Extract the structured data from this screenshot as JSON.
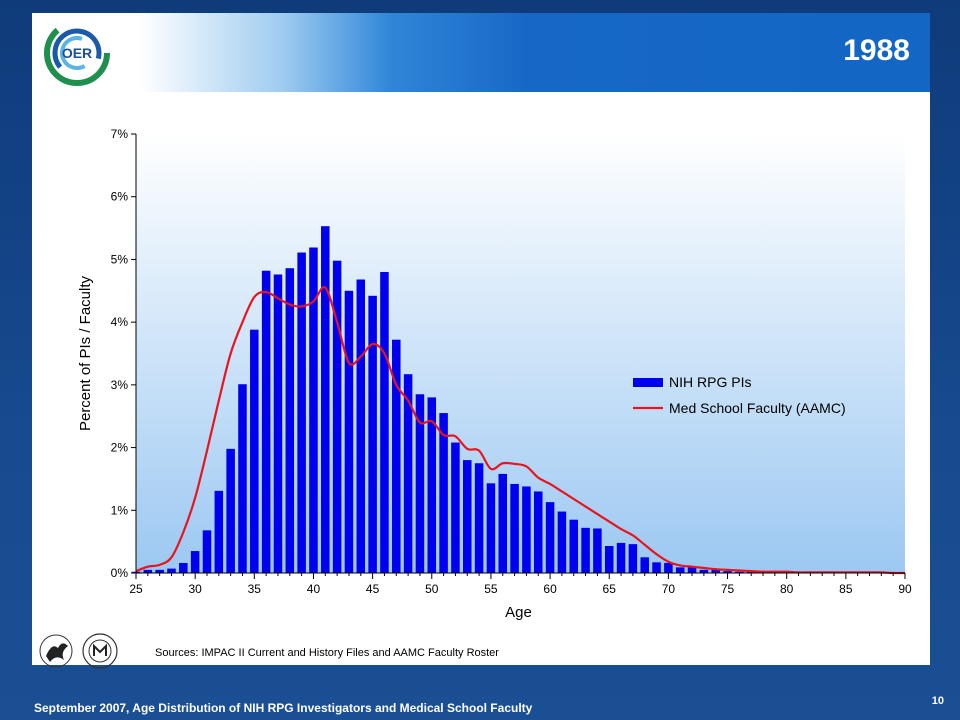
{
  "slide": {
    "title": "1988",
    "logo_text": "OER",
    "sources": "Sources:  IMPAC II Current  and History Files and AAMC Faculty Roster",
    "footer": "September 2007, Age Distribution of NIH RPG Investigators and Medical School Faculty",
    "page_number": "10",
    "logos": [
      "hhs-eagle-icon",
      "nih-seal-icon"
    ]
  },
  "colors": {
    "bar": "#0000ee",
    "line": "#e8141e",
    "header": "#1366c4",
    "plot_bg_top": "#ffffff",
    "plot_bg_bottom": "#9cc8f2"
  },
  "chart_data": {
    "type": "bar",
    "title": "",
    "xlabel": "Age",
    "ylabel": "Percent of PIs / Faculty",
    "xlim": [
      25,
      90
    ],
    "ylim": [
      0,
      7
    ],
    "x_ticks": [
      25,
      30,
      35,
      40,
      45,
      50,
      55,
      60,
      65,
      70,
      75,
      80,
      85,
      90
    ],
    "x_tick_labels": [
      "25",
      "30",
      "35",
      "40",
      "45",
      "50",
      "55",
      "60",
      "65",
      "70",
      "75",
      "80",
      "85",
      "90"
    ],
    "y_ticks": [
      0,
      1,
      2,
      3,
      4,
      5,
      6,
      7
    ],
    "y_tick_labels": [
      "0%",
      "1%",
      "2%",
      "3%",
      "4%",
      "5%",
      "6%",
      "7%"
    ],
    "legend": {
      "placement": "right",
      "entries": [
        "NIH RPG PIs",
        "Med School Faculty (AAMC)"
      ]
    },
    "series": [
      {
        "name": "NIH RPG PIs",
        "kind": "bar",
        "x": [
          25,
          26,
          27,
          28,
          29,
          30,
          31,
          32,
          33,
          34,
          35,
          36,
          37,
          38,
          39,
          40,
          41,
          42,
          43,
          44,
          45,
          46,
          47,
          48,
          49,
          50,
          51,
          52,
          53,
          54,
          55,
          56,
          57,
          58,
          59,
          60,
          61,
          62,
          63,
          64,
          65,
          66,
          67,
          68,
          69,
          70,
          71,
          72,
          73,
          74,
          75,
          76,
          77,
          78,
          79,
          80,
          81,
          82,
          83,
          84,
          85,
          86,
          87,
          88,
          89,
          90
        ],
        "values": [
          0.02,
          0.05,
          0.05,
          0.07,
          0.16,
          0.35,
          0.68,
          1.31,
          1.98,
          3.01,
          3.88,
          4.82,
          4.76,
          4.86,
          5.11,
          5.19,
          5.53,
          4.98,
          4.5,
          4.68,
          4.42,
          4.8,
          3.72,
          3.17,
          2.85,
          2.8,
          2.55,
          2.08,
          1.8,
          1.75,
          1.43,
          1.58,
          1.42,
          1.38,
          1.3,
          1.13,
          0.98,
          0.85,
          0.72,
          0.71,
          0.43,
          0.48,
          0.46,
          0.25,
          0.17,
          0.16,
          0.09,
          0.09,
          0.05,
          0.05,
          0.03,
          0.02,
          0.02,
          0.02,
          0.01,
          0.01,
          0.01,
          0.01,
          0.0,
          0.0,
          0.0,
          0.0,
          0.0,
          0.0,
          0.0,
          0.0
        ]
      },
      {
        "name": "Med School Faculty (AAMC)",
        "kind": "line",
        "x": [
          25,
          26,
          27,
          28,
          29,
          30,
          31,
          32,
          33,
          34,
          35,
          36,
          37,
          38,
          39,
          40,
          41,
          42,
          43,
          44,
          45,
          46,
          47,
          48,
          49,
          50,
          51,
          52,
          53,
          54,
          55,
          56,
          57,
          58,
          59,
          60,
          61,
          62,
          63,
          64,
          65,
          66,
          67,
          68,
          69,
          70,
          71,
          72,
          73,
          74,
          75,
          76,
          77,
          78,
          79,
          80,
          81,
          82,
          83,
          84,
          85,
          86,
          87,
          88,
          89,
          90
        ],
        "values": [
          0.03,
          0.1,
          0.13,
          0.25,
          0.65,
          1.2,
          1.95,
          2.75,
          3.5,
          4.0,
          4.4,
          4.48,
          4.38,
          4.28,
          4.25,
          4.33,
          4.55,
          4.0,
          3.35,
          3.45,
          3.65,
          3.5,
          3.0,
          2.75,
          2.4,
          2.42,
          2.2,
          2.18,
          1.98,
          1.95,
          1.66,
          1.75,
          1.74,
          1.7,
          1.52,
          1.42,
          1.3,
          1.18,
          1.06,
          0.94,
          0.82,
          0.7,
          0.6,
          0.45,
          0.3,
          0.18,
          0.12,
          0.1,
          0.08,
          0.06,
          0.05,
          0.04,
          0.03,
          0.02,
          0.02,
          0.02,
          0.01,
          0.01,
          0.01,
          0.01,
          0.01,
          0.01,
          0.01,
          0.01,
          0.0,
          0.0
        ]
      }
    ]
  }
}
